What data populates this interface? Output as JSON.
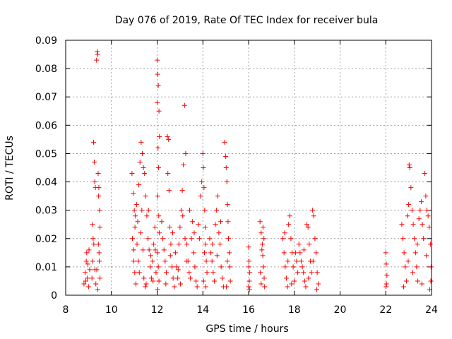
{
  "chart_data": {
    "type": "scatter",
    "title": "Day 076 of 2019, Rate Of TEC Index for receiver bula",
    "xlabel": "GPS time / hours",
    "ylabel": "ROTI / TECUs",
    "xlim": [
      8,
      24
    ],
    "ylim": [
      0,
      0.09
    ],
    "xticks": [
      "8",
      "10",
      "12",
      "14",
      "16",
      "18",
      "20",
      "22",
      "24"
    ],
    "yticks": [
      "0",
      "0.01",
      "0.02",
      "0.03",
      "0.04",
      "0.05",
      "0.06",
      "0.07",
      "0.08",
      "0.09"
    ],
    "grid": true,
    "marker": "plus",
    "color": "#ff0000",
    "series": [
      {
        "points": [
          [
            8.8,
            0.004
          ],
          [
            8.85,
            0.008
          ],
          [
            8.9,
            0.012
          ],
          [
            8.92,
            0.015
          ],
          [
            8.95,
            0.006
          ],
          [
            9.0,
            0.003
          ],
          [
            9.05,
            0.009
          ],
          [
            8.88,
            0.005
          ],
          [
            8.97,
            0.011
          ],
          [
            9.02,
            0.016
          ],
          [
            9.15,
            0.006
          ],
          [
            9.18,
            0.012
          ],
          [
            9.2,
            0.02
          ],
          [
            9.22,
            0.054
          ],
          [
            9.25,
            0.047
          ],
          [
            9.27,
            0.04
          ],
          [
            9.3,
            0.038
          ],
          [
            9.17,
            0.025
          ],
          [
            9.23,
            0.018
          ],
          [
            9.28,
            0.009
          ],
          [
            9.32,
            0.004
          ],
          [
            9.35,
            0.083
          ],
          [
            9.38,
            0.086
          ],
          [
            9.4,
            0.085
          ],
          [
            9.42,
            0.043
          ],
          [
            9.45,
            0.038
          ],
          [
            9.48,
            0.03
          ],
          [
            9.5,
            0.024
          ],
          [
            9.43,
            0.018
          ],
          [
            9.47,
            0.012
          ],
          [
            9.5,
            0.006
          ],
          [
            9.4,
            0.002
          ],
          [
            9.46,
            0.015
          ],
          [
            9.36,
            0.009
          ],
          [
            9.44,
            0.035
          ],
          [
            10.9,
            0.043
          ],
          [
            10.95,
            0.036
          ],
          [
            11.0,
            0.03
          ],
          [
            11.05,
            0.028
          ],
          [
            10.92,
            0.02
          ],
          [
            10.97,
            0.012
          ],
          [
            11.02,
            0.008
          ],
          [
            11.07,
            0.004
          ],
          [
            10.98,
            0.016
          ],
          [
            11.03,
            0.024
          ],
          [
            11.1,
            0.032
          ],
          [
            11.15,
            0.026
          ],
          [
            11.2,
            0.039
          ],
          [
            11.25,
            0.047
          ],
          [
            11.3,
            0.054
          ],
          [
            11.35,
            0.05
          ],
          [
            11.4,
            0.045
          ],
          [
            11.45,
            0.043
          ],
          [
            11.12,
            0.018
          ],
          [
            11.18,
            0.012
          ],
          [
            11.22,
            0.008
          ],
          [
            11.28,
            0.022
          ],
          [
            11.33,
            0.03
          ],
          [
            11.38,
            0.016
          ],
          [
            11.42,
            0.006
          ],
          [
            11.48,
            0.003
          ],
          [
            11.5,
            0.035
          ],
          [
            11.55,
            0.028
          ],
          [
            11.6,
            0.02
          ],
          [
            11.65,
            0.016
          ],
          [
            11.7,
            0.01
          ],
          [
            11.75,
            0.006
          ],
          [
            11.8,
            0.012
          ],
          [
            11.85,
            0.018
          ],
          [
            11.9,
            0.024
          ],
          [
            11.95,
            0.008
          ],
          [
            11.52,
            0.004
          ],
          [
            11.62,
            0.03
          ],
          [
            11.72,
            0.014
          ],
          [
            11.82,
            0.005
          ],
          [
            11.92,
            0.016
          ],
          [
            12.0,
            0.083
          ],
          [
            12.02,
            0.078
          ],
          [
            12.05,
            0.074
          ],
          [
            12.08,
            0.065
          ],
          [
            12.1,
            0.056
          ],
          [
            12.0,
            0.068
          ],
          [
            12.04,
            0.052
          ],
          [
            12.06,
            0.045
          ],
          [
            12.03,
            0.035
          ],
          [
            12.07,
            0.028
          ],
          [
            12.09,
            0.022
          ],
          [
            12.01,
            0.015
          ],
          [
            12.05,
            0.01
          ],
          [
            12.08,
            0.005
          ],
          [
            12.02,
            0.002
          ],
          [
            12.2,
            0.026
          ],
          [
            12.25,
            0.02
          ],
          [
            12.3,
            0.016
          ],
          [
            12.35,
            0.012
          ],
          [
            12.4,
            0.008
          ],
          [
            12.45,
            0.056
          ],
          [
            12.5,
            0.055
          ],
          [
            12.47,
            0.043
          ],
          [
            12.52,
            0.037
          ],
          [
            12.55,
            0.024
          ],
          [
            12.6,
            0.018
          ],
          [
            12.65,
            0.01
          ],
          [
            12.7,
            0.006
          ],
          [
            12.75,
            0.003
          ],
          [
            12.38,
            0.004
          ],
          [
            12.58,
            0.014
          ],
          [
            12.68,
            0.022
          ],
          [
            12.8,
            0.015
          ],
          [
            12.85,
            0.01
          ],
          [
            12.9,
            0.006
          ],
          [
            12.95,
            0.018
          ],
          [
            13.0,
            0.024
          ],
          [
            13.05,
            0.03
          ],
          [
            13.1,
            0.037
          ],
          [
            13.15,
            0.046
          ],
          [
            13.2,
            0.067
          ],
          [
            13.25,
            0.05
          ],
          [
            13.12,
            0.028
          ],
          [
            13.22,
            0.02
          ],
          [
            13.28,
            0.012
          ],
          [
            13.02,
            0.004
          ],
          [
            12.92,
            0.009
          ],
          [
            13.3,
            0.018
          ],
          [
            13.35,
            0.012
          ],
          [
            13.4,
            0.008
          ],
          [
            13.45,
            0.006
          ],
          [
            13.5,
            0.02
          ],
          [
            13.55,
            0.026
          ],
          [
            13.6,
            0.015
          ],
          [
            13.65,
            0.01
          ],
          [
            13.7,
            0.005
          ],
          [
            13.75,
            0.003
          ],
          [
            13.8,
            0.025
          ],
          [
            13.85,
            0.02
          ],
          [
            13.9,
            0.035
          ],
          [
            13.95,
            0.04
          ],
          [
            13.42,
            0.03
          ],
          [
            13.62,
            0.022
          ],
          [
            14.0,
            0.05
          ],
          [
            14.02,
            0.045
          ],
          [
            14.05,
            0.038
          ],
          [
            14.08,
            0.03
          ],
          [
            14.1,
            0.024
          ],
          [
            14.12,
            0.018
          ],
          [
            14.15,
            0.012
          ],
          [
            14.18,
            0.008
          ],
          [
            14.03,
            0.005
          ],
          [
            14.07,
            0.015
          ],
          [
            14.13,
            0.003
          ],
          [
            14.3,
            0.02
          ],
          [
            14.35,
            0.015
          ],
          [
            14.4,
            0.012
          ],
          [
            14.45,
            0.008
          ],
          [
            14.5,
            0.005
          ],
          [
            14.55,
            0.025
          ],
          [
            14.6,
            0.03
          ],
          [
            14.65,
            0.035
          ],
          [
            14.7,
            0.022
          ],
          [
            14.75,
            0.018
          ],
          [
            14.8,
            0.01
          ],
          [
            14.85,
            0.006
          ],
          [
            14.9,
            0.003
          ],
          [
            14.42,
            0.018
          ],
          [
            14.62,
            0.014
          ],
          [
            14.78,
            0.026
          ],
          [
            14.95,
            0.054
          ],
          [
            15.0,
            0.049
          ],
          [
            15.02,
            0.045
          ],
          [
            15.05,
            0.04
          ],
          [
            15.08,
            0.032
          ],
          [
            15.1,
            0.026
          ],
          [
            15.12,
            0.02
          ],
          [
            15.15,
            0.015
          ],
          [
            15.18,
            0.01
          ],
          [
            15.2,
            0.005
          ],
          [
            15.03,
            0.003
          ],
          [
            15.07,
            0.012
          ],
          [
            16.0,
            0.017
          ],
          [
            16.02,
            0.012
          ],
          [
            16.05,
            0.008
          ],
          [
            16.03,
            0.005
          ],
          [
            16.0,
            0.003
          ],
          [
            16.04,
            0.002
          ],
          [
            16.01,
            0.01
          ],
          [
            16.5,
            0.026
          ],
          [
            16.55,
            0.022
          ],
          [
            16.6,
            0.018
          ],
          [
            16.62,
            0.014
          ],
          [
            16.65,
            0.01
          ],
          [
            16.68,
            0.006
          ],
          [
            16.7,
            0.003
          ],
          [
            16.52,
            0.008
          ],
          [
            16.58,
            0.016
          ],
          [
            16.63,
            0.024
          ],
          [
            16.67,
            0.02
          ],
          [
            16.55,
            0.004
          ],
          [
            17.5,
            0.02
          ],
          [
            17.55,
            0.015
          ],
          [
            17.6,
            0.01
          ],
          [
            17.65,
            0.006
          ],
          [
            17.7,
            0.003
          ],
          [
            17.75,
            0.025
          ],
          [
            17.8,
            0.028
          ],
          [
            17.85,
            0.02
          ],
          [
            17.9,
            0.015
          ],
          [
            17.95,
            0.01
          ],
          [
            18.0,
            0.005
          ],
          [
            18.05,
            0.015
          ],
          [
            18.1,
            0.012
          ],
          [
            18.15,
            0.008
          ],
          [
            17.58,
            0.022
          ],
          [
            17.72,
            0.012
          ],
          [
            17.88,
            0.004
          ],
          [
            18.2,
            0.018
          ],
          [
            18.25,
            0.015
          ],
          [
            18.3,
            0.012
          ],
          [
            18.35,
            0.01
          ],
          [
            18.4,
            0.008
          ],
          [
            18.45,
            0.005
          ],
          [
            18.5,
            0.003
          ],
          [
            18.55,
            0.025
          ],
          [
            18.6,
            0.024
          ],
          [
            18.65,
            0.018
          ],
          [
            18.7,
            0.012
          ],
          [
            18.75,
            0.008
          ],
          [
            18.8,
            0.03
          ],
          [
            18.85,
            0.028
          ],
          [
            18.9,
            0.02
          ],
          [
            18.95,
            0.015
          ],
          [
            19.0,
            0.008
          ],
          [
            19.05,
            0.004
          ],
          [
            18.42,
            0.016
          ],
          [
            18.62,
            0.006
          ],
          [
            18.82,
            0.012
          ],
          [
            18.98,
            0.002
          ],
          [
            22.0,
            0.015
          ],
          [
            22.02,
            0.011
          ],
          [
            22.05,
            0.007
          ],
          [
            22.03,
            0.004
          ],
          [
            22.01,
            0.003
          ],
          [
            22.7,
            0.025
          ],
          [
            22.75,
            0.02
          ],
          [
            22.8,
            0.015
          ],
          [
            22.85,
            0.01
          ],
          [
            22.9,
            0.005
          ],
          [
            22.95,
            0.028
          ],
          [
            23.0,
            0.032
          ],
          [
            23.02,
            0.046
          ],
          [
            23.05,
            0.045
          ],
          [
            23.1,
            0.038
          ],
          [
            23.15,
            0.03
          ],
          [
            23.2,
            0.025
          ],
          [
            23.25,
            0.02
          ],
          [
            23.3,
            0.015
          ],
          [
            23.35,
            0.01
          ],
          [
            23.4,
            0.005
          ],
          [
            23.45,
            0.027
          ],
          [
            23.5,
            0.03
          ],
          [
            23.55,
            0.033
          ],
          [
            23.6,
            0.025
          ],
          [
            23.65,
            0.02
          ],
          [
            23.7,
            0.043
          ],
          [
            23.75,
            0.035
          ],
          [
            23.8,
            0.03
          ],
          [
            23.85,
            0.028
          ],
          [
            23.9,
            0.024
          ],
          [
            23.95,
            0.018
          ],
          [
            23.98,
            0.01
          ],
          [
            23.97,
            0.005
          ],
          [
            22.78,
            0.003
          ],
          [
            22.98,
            0.012
          ],
          [
            23.18,
            0.008
          ],
          [
            23.38,
            0.018
          ],
          [
            23.58,
            0.004
          ],
          [
            23.78,
            0.014
          ],
          [
            23.92,
            0.002
          ]
        ]
      }
    ]
  }
}
